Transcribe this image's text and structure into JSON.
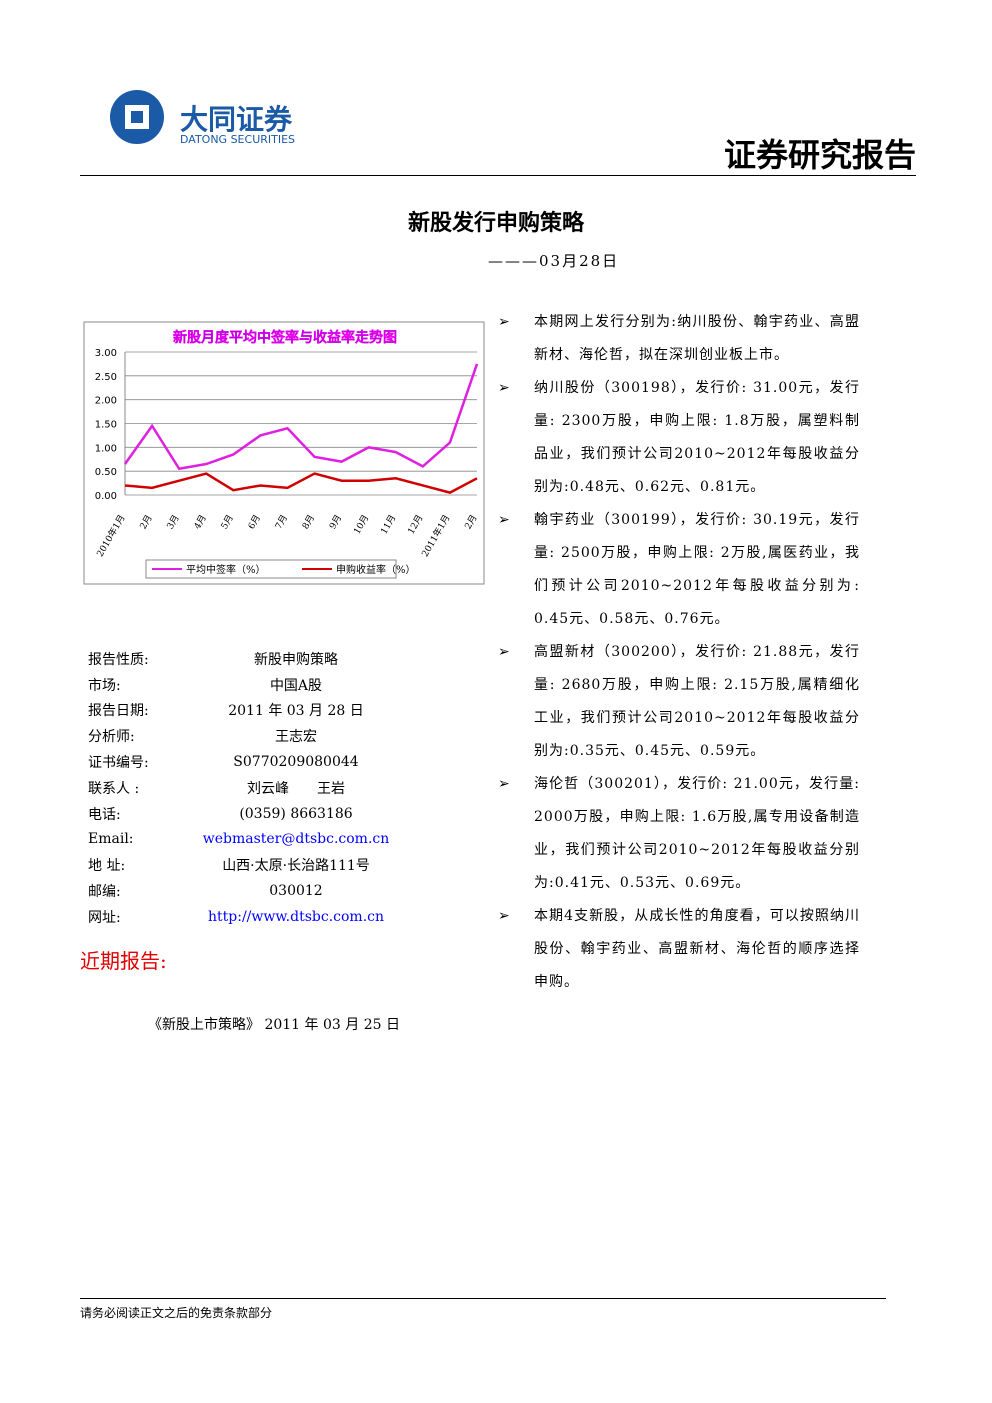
{
  "header": {
    "company": "大同证券",
    "company_en": "DATONG SECURITIES",
    "report_type": "证券研究报告"
  },
  "title": "新股发行申购策略",
  "date": "———03月28日",
  "chart_data": {
    "type": "line",
    "title": "新股月度平均中签率与收益率走势图",
    "categories": [
      "2010年1月",
      "2月",
      "3月",
      "4月",
      "5月",
      "6月",
      "7月",
      "8月",
      "9月",
      "10月",
      "11月",
      "12月",
      "2011年1月",
      "2月"
    ],
    "series": [
      {
        "name": "平均中签率（%）",
        "color": "#e020e0",
        "values": [
          0.65,
          1.45,
          0.55,
          0.65,
          0.85,
          1.25,
          1.4,
          0.8,
          0.7,
          1.0,
          0.9,
          0.6,
          1.1,
          2.75
        ]
      },
      {
        "name": "申购收益率（%）",
        "color": "#d00000",
        "values": [
          0.2,
          0.15,
          0.3,
          0.45,
          0.1,
          0.2,
          0.15,
          0.45,
          0.3,
          0.3,
          0.35,
          0.2,
          0.05,
          0.35
        ]
      }
    ],
    "ylim": [
      0,
      3
    ],
    "yticks": [
      {
        "value": 0,
        "label": "0.00"
      },
      {
        "value": 0.5,
        "label": "0.50"
      },
      {
        "value": 1,
        "label": "1.00"
      },
      {
        "value": 1.5,
        "label": "1.50"
      },
      {
        "value": 2,
        "label": "2.00"
      },
      {
        "value": 2.5,
        "label": "2.50"
      },
      {
        "value": 3,
        "label": "3.00"
      }
    ],
    "grid": true
  },
  "info": {
    "rows": [
      [
        "报告性质:",
        "新股申购策略"
      ],
      [
        "市场:",
        "中国A股"
      ],
      [
        "报告日期:",
        "2011 年 03 月 28 日"
      ],
      [
        "分析师:",
        "王志宏"
      ],
      [
        "证书编号:",
        "S0770209080044"
      ],
      [
        "联系人 :",
        "刘云峰　　王岩"
      ],
      [
        "电话:",
        "(0359) 8663186"
      ],
      [
        "Email:",
        "webmaster@dtsbc.com.cn"
      ],
      [
        "地 址:",
        "山西·太原·长治路111号"
      ],
      [
        "邮编:",
        "030012"
      ],
      [
        "网址:",
        "http://www.dtsbc.com.cn"
      ]
    ]
  },
  "recent": {
    "heading": "近期报告:",
    "items": [
      "《新股上市策略》 2011 年 03 月 25 日"
    ]
  },
  "bullets": [
    "本期网上发行分别为:纳川股份、翰宇药业、高盟新材、海伦哲，拟在深圳创业板上市。",
    "纳川股份（300198），发行价: 31.00元，发行量: 2300万股，申购上限: 1.8万股，属塑料制品业，我们预计公司2010~2012年每股收益分别为:0.48元、0.62元、0.81元。",
    "翰宇药业（300199），发行价: 30.19元，发行量: 2500万股，申购上限: 2万股,属医药业，我们预计公司2010~2012年每股收益分别为: 0.45元、0.58元、0.76元。",
    "高盟新材（300200），发行价: 21.88元，发行量: 2680万股，申购上限: 2.15万股,属精细化工业，我们预计公司2010~2012年每股收益分别为:0.35元、0.45元、0.59元。",
    "海伦哲（300201），发行价: 21.00元，发行量: 2000万股，申购上限: 1.6万股,属专用设备制造业，我们预计公司2010~2012年每股收益分别为:0.41元、0.53元、0.69元。",
    "本期4支新股，从成长性的角度看，可以按照纳川股份、翰宇药业、高盟新材、海伦哲的顺序选择申购。"
  ],
  "footer": "请务必阅读正文之后的免责条款部分"
}
